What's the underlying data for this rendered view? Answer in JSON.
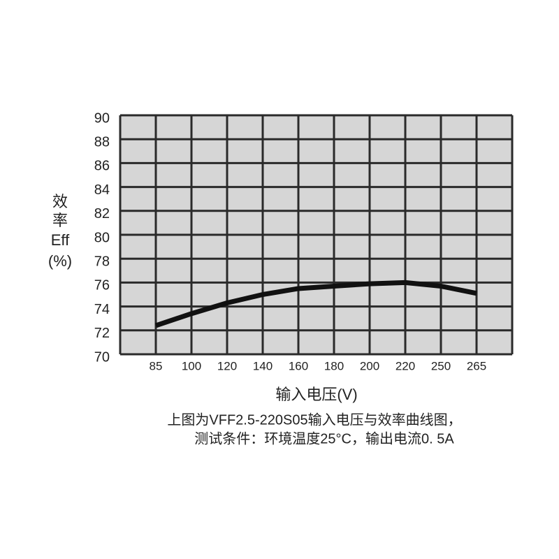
{
  "chart_data": {
    "type": "line",
    "y_label": [
      "效",
      "率",
      "Eff",
      "(%)"
    ],
    "x_label": "输入电压(V)",
    "caption": [
      "上图为VFF2.5-220S05输入电压与效率曲线图，",
      "测试条件：环境温度25°C，输出电流0. 5A"
    ],
    "categories": [
      "85",
      "100",
      "120",
      "140",
      "160",
      "180",
      "200",
      "220",
      "250",
      "265"
    ],
    "series": [
      {
        "color": "#111111",
        "values": [
          72.4,
          73.4,
          74.3,
          75.0,
          75.5,
          75.7,
          75.9,
          76.0,
          75.7,
          75.1
        ]
      }
    ],
    "ylim": [
      70,
      90
    ],
    "yticks": [
      70,
      72,
      74,
      76,
      78,
      80,
      82,
      84,
      86,
      88,
      90
    ],
    "grid": true
  }
}
